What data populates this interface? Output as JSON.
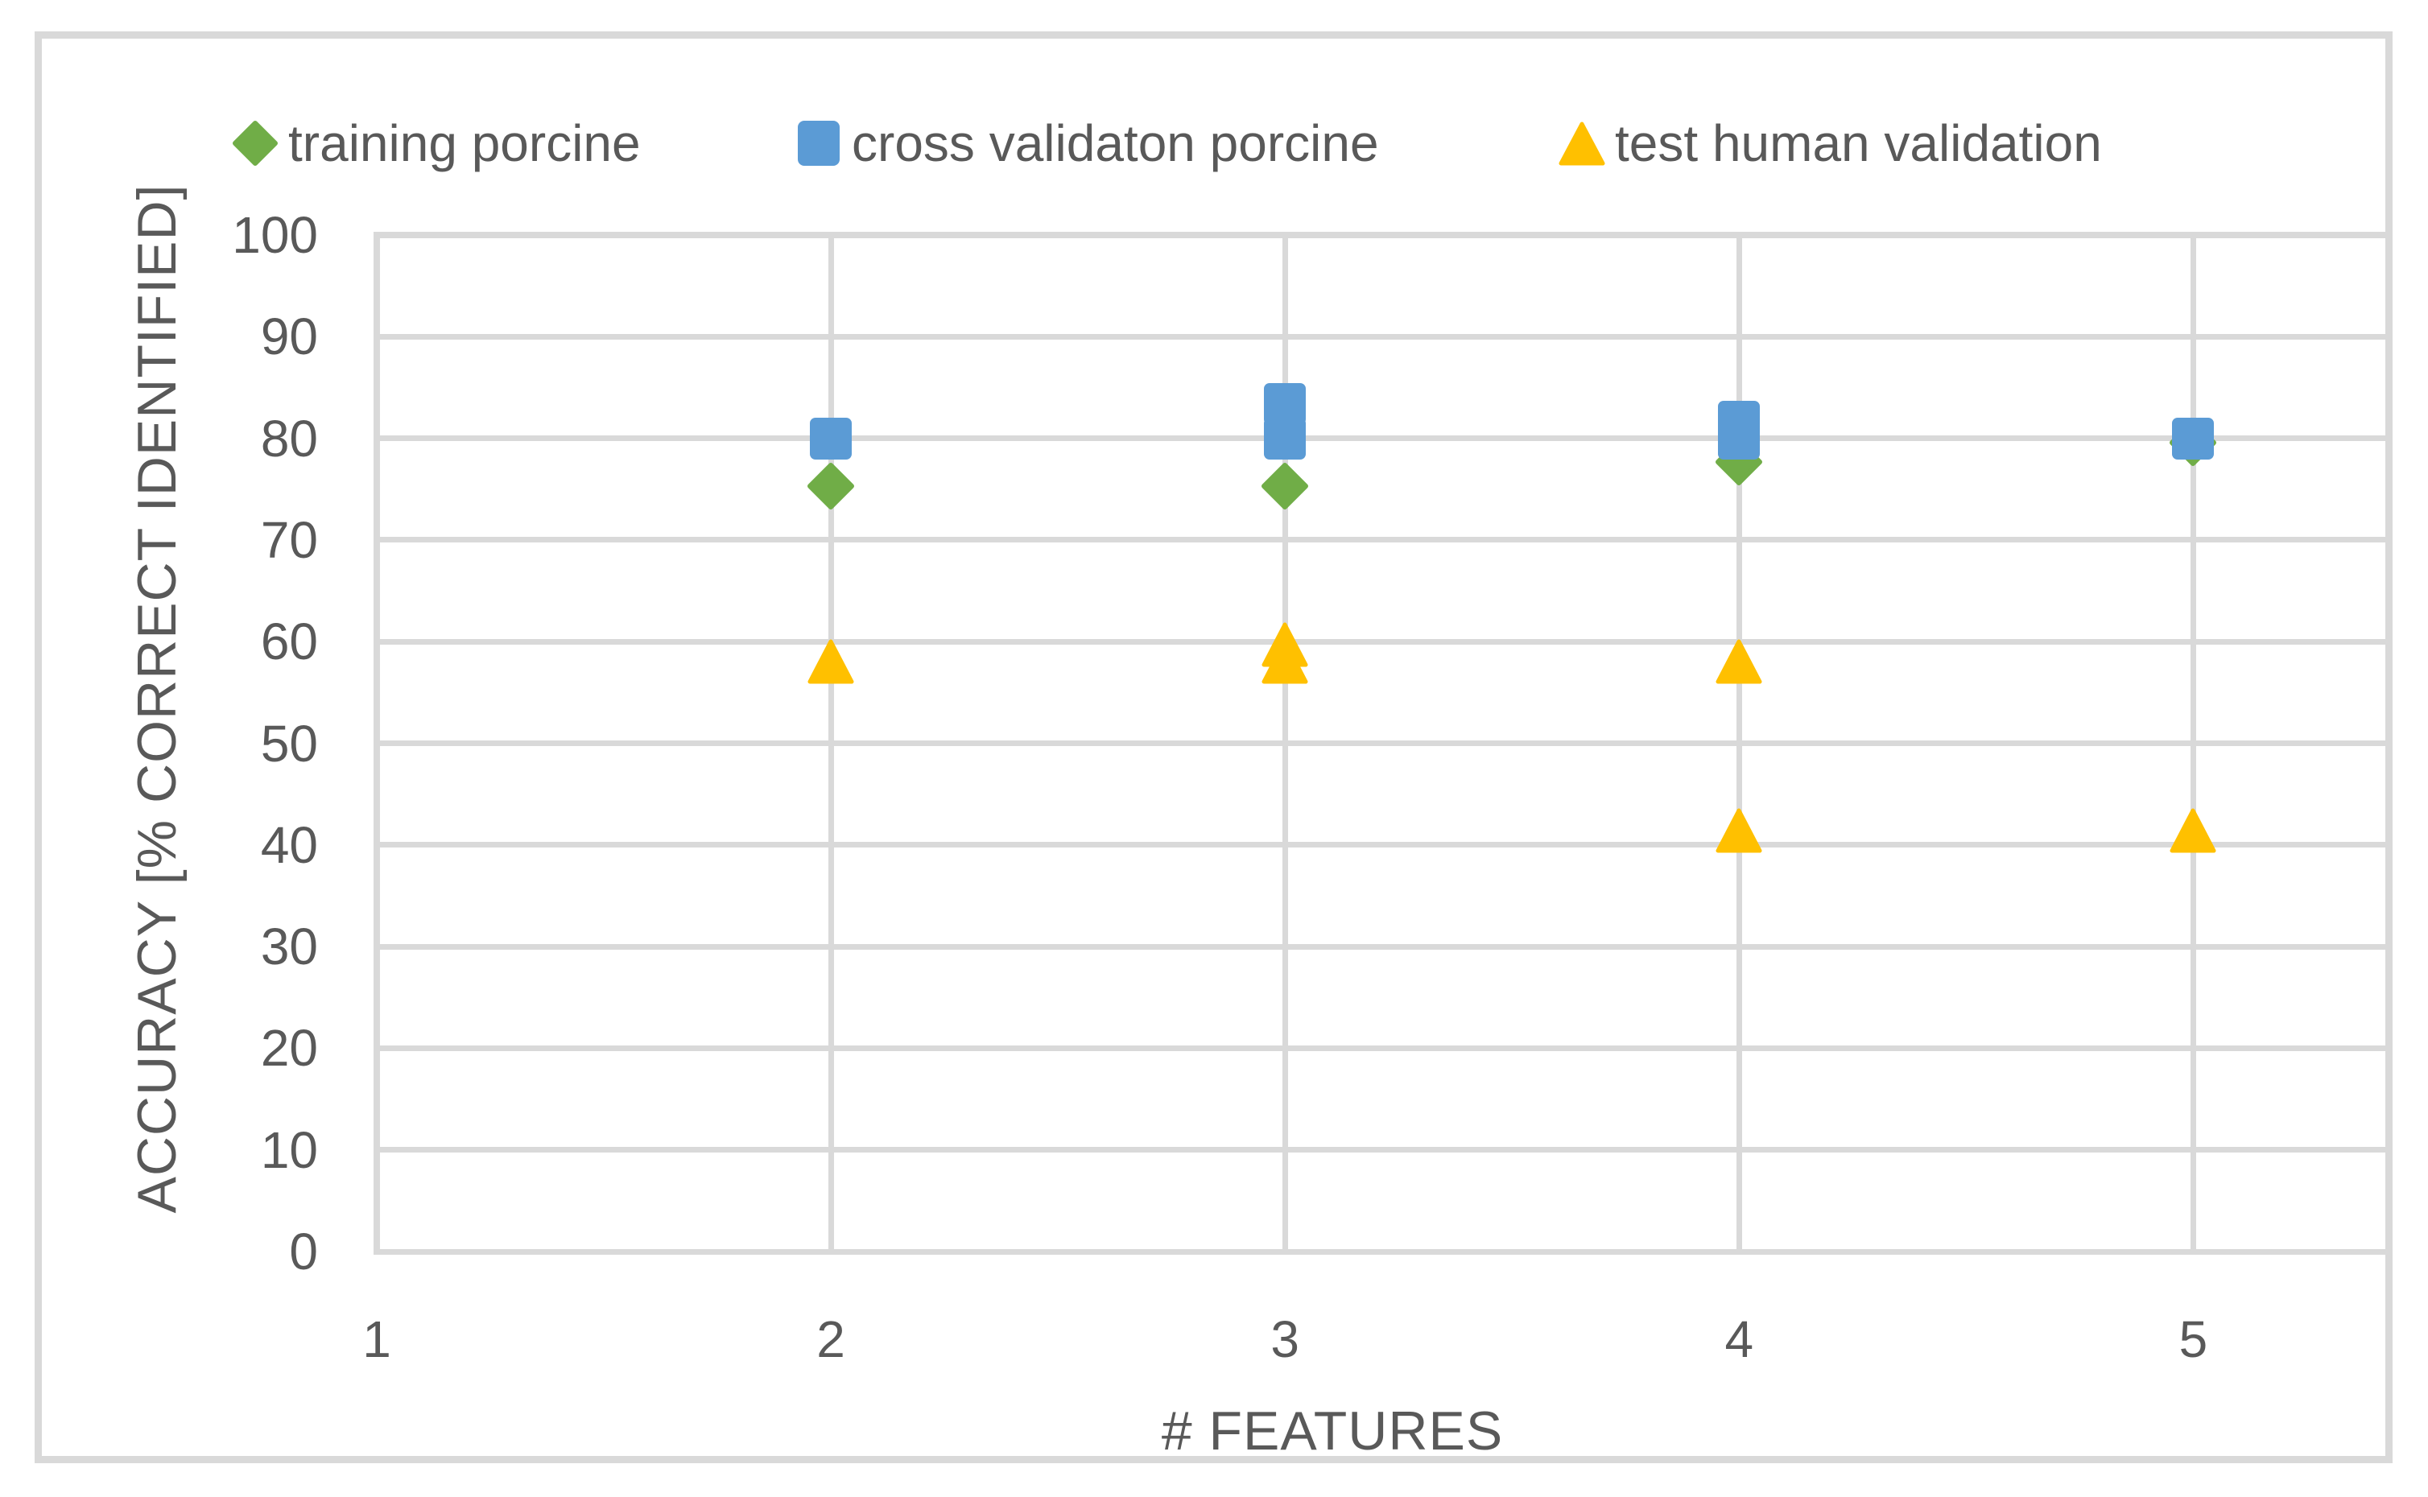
{
  "figure": {
    "background": "#ffffff",
    "border_color": "#D9D9D9",
    "text_color": "#595959",
    "gridline_color": "#D9D9D9"
  },
  "chart_data": {
    "type": "scatter",
    "title": "",
    "xlabel": "# FEATURES",
    "ylabel": "ACCURACY [% CORRECT IDENTIFIED]",
    "xlim": [
      1,
      5.43
    ],
    "ylim": [
      0,
      100
    ],
    "xticks": [
      1,
      2,
      3,
      4,
      5
    ],
    "yticks": [
      0,
      10,
      20,
      30,
      40,
      50,
      60,
      70,
      80,
      90,
      100
    ],
    "grid": true,
    "legend_position": "top",
    "series": [
      {
        "name": "training porcine",
        "marker": "diamond",
        "color": "#70AD47",
        "points": [
          [
            2,
            75.3
          ],
          [
            3,
            75.3
          ],
          [
            4,
            77.7
          ],
          [
            5,
            79.6
          ]
        ]
      },
      {
        "name": "cross validaton porcine",
        "marker": "square",
        "color": "#5B9BD5",
        "points": [
          [
            2,
            80
          ],
          [
            3,
            80
          ],
          [
            3,
            83.4
          ],
          [
            4,
            80
          ],
          [
            4,
            81.6
          ],
          [
            5,
            80
          ]
        ]
      },
      {
        "name": "test human validation",
        "marker": "triangle",
        "color": "#FFC000",
        "points": [
          [
            2,
            58
          ],
          [
            3,
            58
          ],
          [
            3,
            59.7
          ],
          [
            4,
            58
          ],
          [
            4,
            41.4
          ],
          [
            5,
            41.4
          ]
        ]
      }
    ]
  }
}
